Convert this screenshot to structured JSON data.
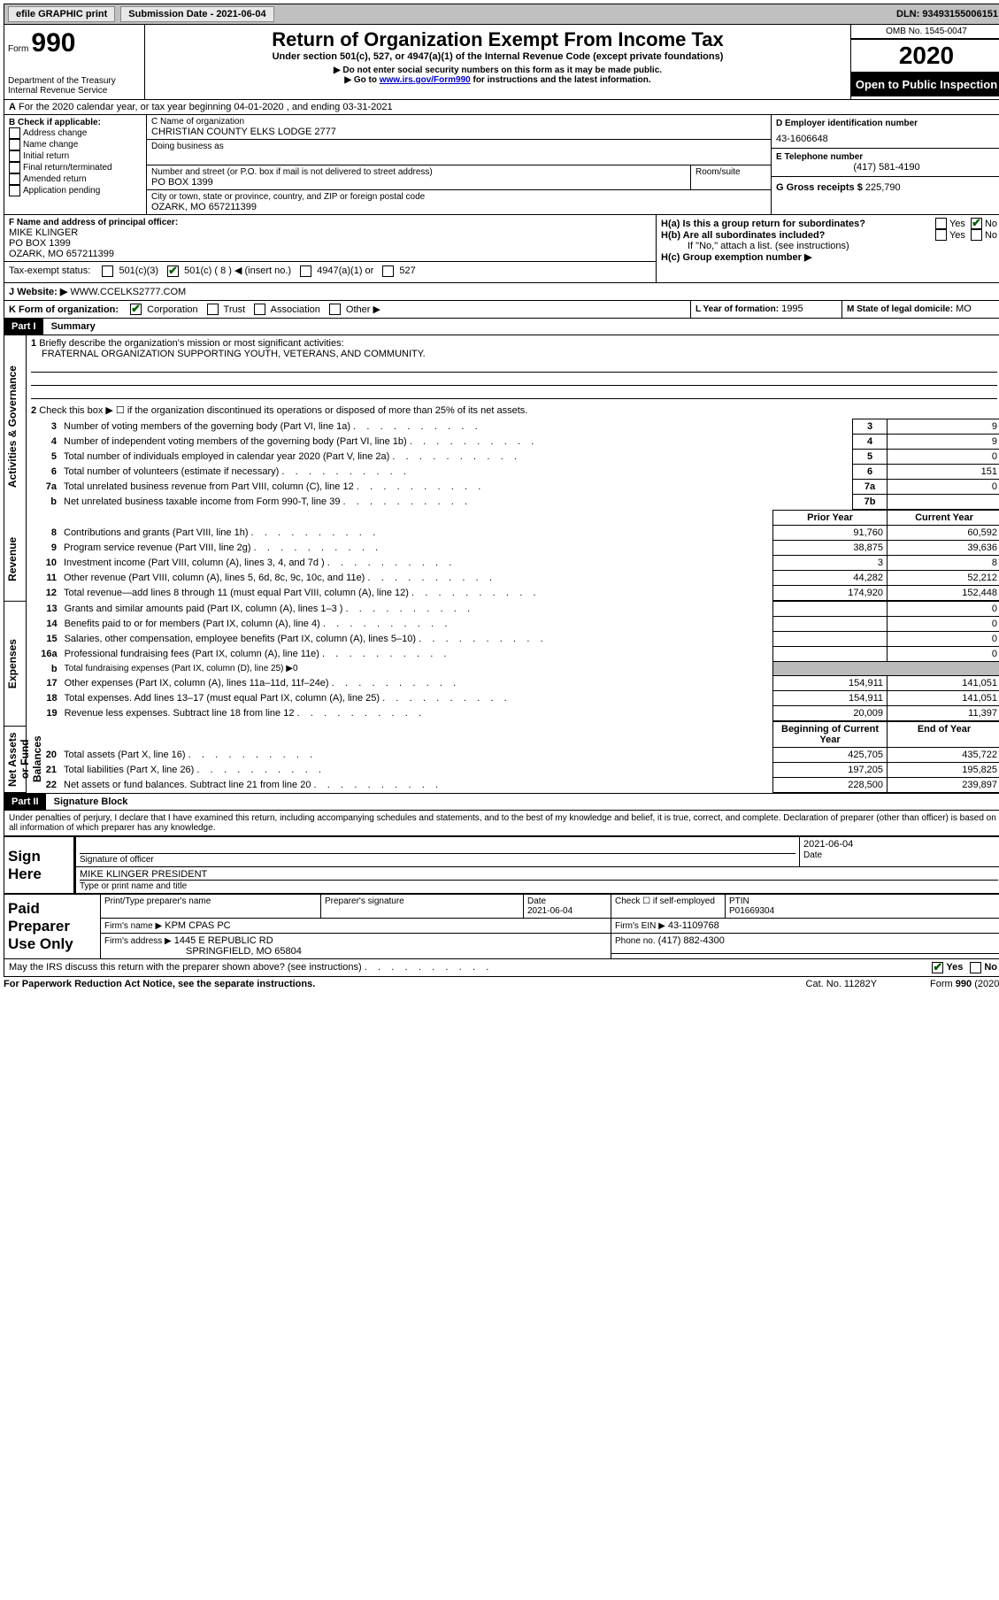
{
  "topbar": {
    "efile_label": "efile GRAPHIC print",
    "submission_label": "Submission Date - 2021-06-04",
    "dln_label": "DLN: 93493155006151"
  },
  "header": {
    "form_label": "Form",
    "form_number": "990",
    "title": "Return of Organization Exempt From Income Tax",
    "subtitle": "Under section 501(c), 527, or 4947(a)(1) of the Internal Revenue Code (except private foundations)",
    "note1": "▶ Do not enter social security numbers on this form as it may be made public.",
    "note2_pre": "▶ Go to ",
    "note2_link": "www.irs.gov/Form990",
    "note2_post": " for instructions and the latest information.",
    "dept": "Department of the Treasury",
    "irs": "Internal Revenue Service",
    "omb": "OMB No. 1545-0047",
    "year": "2020",
    "open_public": "Open to Public Inspection"
  },
  "line_a": "For the 2020 calendar year, or tax year beginning 04-01-2020    , and ending 03-31-2021",
  "box_b": {
    "label": "B Check if applicable:",
    "items": [
      "Address change",
      "Name change",
      "Initial return",
      "Final return/terminated",
      "Amended return",
      "Application pending"
    ]
  },
  "box_c": {
    "name_label": "C Name of organization",
    "name": "CHRISTIAN COUNTY ELKS LODGE 2777",
    "dba_label": "Doing business as",
    "addr_label": "Number and street (or P.O. box if mail is not delivered to street address)",
    "room_label": "Room/suite",
    "addr": "PO BOX 1399",
    "city_label": "City or town, state or province, country, and ZIP or foreign postal code",
    "city": "OZARK, MO  657211399"
  },
  "box_d": {
    "label": "D Employer identification number",
    "value": "43-1606648"
  },
  "box_e": {
    "label": "E Telephone number",
    "value": "(417) 581-4190"
  },
  "box_g": {
    "label": "G Gross receipts $",
    "value": "225,790"
  },
  "box_f": {
    "label": "F  Name and address of principal officer:",
    "name": "MIKE KLINGER",
    "addr1": "PO BOX 1399",
    "addr2": "OZARK, MO  657211399"
  },
  "box_h": {
    "a_label": "H(a)  Is this a group return for subordinates?",
    "b_label": "H(b)  Are all subordinates included?",
    "b_note": "If \"No,\" attach a list. (see instructions)",
    "c_label": "H(c)  Group exemption number ▶",
    "yes": "Yes",
    "no": "No"
  },
  "box_i": {
    "label": "Tax-exempt status:",
    "opts": [
      "501(c)(3)",
      "501(c) ( 8 ) ◀ (insert no.)",
      "4947(a)(1) or",
      "527"
    ]
  },
  "box_j": {
    "label": "Website: ▶",
    "value": "WWW.CCELKS2777.COM"
  },
  "box_k": {
    "label": "K Form of organization:",
    "opts": [
      "Corporation",
      "Trust",
      "Association",
      "Other ▶"
    ]
  },
  "box_l": {
    "label": "L Year of formation:",
    "value": "1995"
  },
  "box_m": {
    "label": "M State of legal domicile:",
    "value": "MO"
  },
  "part1": {
    "tag": "Part I",
    "title": "Summary"
  },
  "summary": {
    "q1_label": "Briefly describe the organization's mission or most significant activities:",
    "q1_value": "FRATERNAL ORGANIZATION SUPPORTING YOUTH, VETERANS, AND COMMUNITY.",
    "q2_label": "Check this box ▶ ☐  if the organization discontinued its operations or disposed of more than 25% of its net assets.",
    "vlabel_ag": "Activities & Governance",
    "vlabel_rev": "Revenue",
    "vlabel_exp": "Expenses",
    "vlabel_na": "Net Assets or Fund Balances",
    "lines_ag": [
      {
        "n": "3",
        "t": "Number of voting members of the governing body (Part VI, line 1a)",
        "b": "3",
        "v": "9"
      },
      {
        "n": "4",
        "t": "Number of independent voting members of the governing body (Part VI, line 1b)",
        "b": "4",
        "v": "9"
      },
      {
        "n": "5",
        "t": "Total number of individuals employed in calendar year 2020 (Part V, line 2a)",
        "b": "5",
        "v": "0"
      },
      {
        "n": "6",
        "t": "Total number of volunteers (estimate if necessary)",
        "b": "6",
        "v": "151"
      },
      {
        "n": "7a",
        "t": "Total unrelated business revenue from Part VIII, column (C), line 12",
        "b": "7a",
        "v": "0"
      },
      {
        "n": "b",
        "t": "Net unrelated business taxable income from Form 990-T, line 39",
        "b": "7b",
        "v": ""
      }
    ],
    "col_prior": "Prior Year",
    "col_current": "Current Year",
    "col_begin": "Beginning of Current Year",
    "col_end": "End of Year",
    "lines_rev": [
      {
        "n": "8",
        "t": "Contributions and grants (Part VIII, line 1h)",
        "p": "91,760",
        "c": "60,592"
      },
      {
        "n": "9",
        "t": "Program service revenue (Part VIII, line 2g)",
        "p": "38,875",
        "c": "39,636"
      },
      {
        "n": "10",
        "t": "Investment income (Part VIII, column (A), lines 3, 4, and 7d )",
        "p": "3",
        "c": "8"
      },
      {
        "n": "11",
        "t": "Other revenue (Part VIII, column (A), lines 5, 6d, 8c, 9c, 10c, and 11e)",
        "p": "44,282",
        "c": "52,212"
      },
      {
        "n": "12",
        "t": "Total revenue—add lines 8 through 11 (must equal Part VIII, column (A), line 12)",
        "p": "174,920",
        "c": "152,448"
      }
    ],
    "lines_exp": [
      {
        "n": "13",
        "t": "Grants and similar amounts paid (Part IX, column (A), lines 1–3 )",
        "p": "",
        "c": "0"
      },
      {
        "n": "14",
        "t": "Benefits paid to or for members (Part IX, column (A), line 4)",
        "p": "",
        "c": "0"
      },
      {
        "n": "15",
        "t": "Salaries, other compensation, employee benefits (Part IX, column (A), lines 5–10)",
        "p": "",
        "c": "0"
      },
      {
        "n": "16a",
        "t": "Professional fundraising fees (Part IX, column (A), line 11e)",
        "p": "",
        "c": "0"
      },
      {
        "n": "b",
        "t": "Total fundraising expenses (Part IX, column (D), line 25) ▶0",
        "p": null,
        "c": null
      },
      {
        "n": "17",
        "t": "Other expenses (Part IX, column (A), lines 11a–11d, 11f–24e)",
        "p": "154,911",
        "c": "141,051"
      },
      {
        "n": "18",
        "t": "Total expenses. Add lines 13–17 (must equal Part IX, column (A), line 25)",
        "p": "154,911",
        "c": "141,051"
      },
      {
        "n": "19",
        "t": "Revenue less expenses. Subtract line 18 from line 12",
        "p": "20,009",
        "c": "11,397"
      }
    ],
    "lines_na": [
      {
        "n": "20",
        "t": "Total assets (Part X, line 16)",
        "p": "425,705",
        "c": "435,722"
      },
      {
        "n": "21",
        "t": "Total liabilities (Part X, line 26)",
        "p": "197,205",
        "c": "195,825"
      },
      {
        "n": "22",
        "t": "Net assets or fund balances. Subtract line 21 from line 20",
        "p": "228,500",
        "c": "239,897"
      }
    ]
  },
  "part2": {
    "tag": "Part II",
    "title": "Signature Block"
  },
  "sig": {
    "declaration": "Under penalties of perjury, I declare that I have examined this return, including accompanying schedules and statements, and to the best of my knowledge and belief, it is true, correct, and complete. Declaration of preparer (other than officer) is based on all information of which preparer has any knowledge.",
    "sign_here": "Sign Here",
    "sig_officer": "Signature of officer",
    "date_label": "Date",
    "date": "2021-06-04",
    "name_title": "MIKE KLINGER  PRESIDENT",
    "type_label": "Type or print name and title",
    "paid": "Paid Preparer Use Only",
    "prep_name_label": "Print/Type preparer's name",
    "prep_sig_label": "Preparer's signature",
    "prep_date_label": "Date",
    "prep_date": "2021-06-04",
    "check_self": "Check ☐ if self-employed",
    "ptin_label": "PTIN",
    "ptin": "P01669304",
    "firm_name_label": "Firm's name    ▶",
    "firm_name": "KPM CPAS PC",
    "firm_ein_label": "Firm's EIN ▶",
    "firm_ein": "43-1109768",
    "firm_addr_label": "Firm's address ▶",
    "firm_addr1": "1445 E REPUBLIC RD",
    "firm_addr2": "SPRINGFIELD, MO  65804",
    "phone_label": "Phone no.",
    "phone": "(417) 882-4300",
    "discuss": "May the IRS discuss this return with the preparer shown above? (see instructions)",
    "paperwork": "For Paperwork Reduction Act Notice, see the separate instructions.",
    "catno": "Cat. No. 11282Y",
    "formno": "Form 990 (2020)"
  }
}
